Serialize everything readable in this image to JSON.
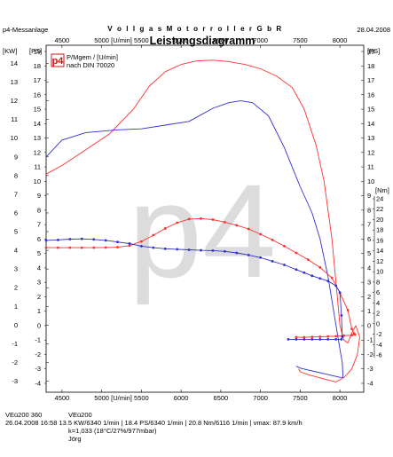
{
  "header": {
    "left": "p4-Messanlage",
    "center": "V o l l g a s   M o t o r r o l l e r   G b R",
    "date": "28.04.2008",
    "title": "Leistungsdiagramm"
  },
  "legend": {
    "logo": "p4",
    "line1": "P/Mgem / [U/min]",
    "line2": "nach DIN 70020"
  },
  "watermark": "p4",
  "colors": {
    "power": "#ff3030",
    "torque": "#3030d0",
    "axis": "#000000",
    "logo": "#d01010",
    "watermark": "#dcdcdc"
  },
  "footer": {
    "line1_left": "VEü200 360",
    "line1_right": "VEü200",
    "line2": "26.04.2008  16:58 13.5 KW/6340 1/min  |  18.4 PS/6340 1/min  |  20.8 Nm/6116 1/min  |  vmax: 87.9 km/h",
    "line3": "k=1,033 (18°C/27%/977mbar)",
    "line4": "Jörg"
  },
  "chart_data": {
    "type": "line",
    "title": "Leistungsdiagramm",
    "xlabel": "[U/min]",
    "xlim": [
      4300,
      8300
    ],
    "x_ticks": [
      4500,
      5000,
      5500,
      6000,
      6500,
      7000,
      7500,
      8000
    ],
    "left_axes": [
      {
        "unit": "[KW]",
        "range": [
          -3,
          14
        ],
        "ticks": [
          -3,
          -2,
          -1,
          0,
          1,
          2,
          3,
          4,
          5,
          6,
          7,
          8,
          9,
          10,
          11,
          12,
          13,
          14
        ]
      },
      {
        "unit": "[PS]",
        "range": [
          -4,
          19
        ],
        "ticks": [
          -4,
          -3,
          -2,
          -1,
          0,
          1,
          2,
          3,
          4,
          5,
          6,
          7,
          8,
          9,
          10,
          11,
          12,
          13,
          14,
          15,
          16,
          17,
          18,
          19
        ]
      }
    ],
    "right_axes": [
      {
        "unit": "[PS]",
        "range": [
          -4,
          19
        ],
        "ticks": [
          -4,
          -3,
          -2,
          -1,
          0,
          1,
          2,
          3,
          4,
          5,
          6,
          7,
          8,
          9,
          10,
          11,
          12,
          13,
          14,
          15,
          16,
          17,
          18,
          19
        ]
      },
      {
        "unit": "[Nm]",
        "range": [
          -6,
          24
        ],
        "ticks": [
          -6,
          -4,
          -2,
          0,
          2,
          4,
          6,
          8,
          10,
          12,
          14,
          16,
          18,
          20,
          22,
          24
        ]
      }
    ],
    "series": [
      {
        "name": "P",
        "unit": "PS",
        "color": "#ff3030",
        "markers": false,
        "x": [
          4300,
          4500,
          4800,
          5100,
          5400,
          5600,
          5800,
          6000,
          6200,
          6400,
          6600,
          6800,
          7000,
          7200,
          7400,
          7550,
          7700,
          7800,
          7900,
          7950,
          8000,
          8050,
          8100,
          8150,
          8200,
          8250,
          8220,
          8150,
          8050,
          7950,
          7800,
          7600,
          7500,
          7480
        ],
        "y": [
          10.5,
          11.1,
          12.2,
          13.3,
          15.0,
          16.6,
          17.6,
          18.1,
          18.35,
          18.4,
          18.3,
          18.1,
          17.8,
          17.3,
          16.5,
          15.0,
          12.5,
          10.0,
          6.0,
          3.0,
          0.0,
          -1.0,
          -1.2,
          -0.5,
          0.0,
          -0.8,
          -2.0,
          -3.0,
          -3.6,
          -3.9,
          -3.7,
          -3.4,
          -3.2,
          -3.0
        ]
      },
      {
        "name": "P",
        "unit": "KW",
        "color": "#3030d0",
        "markers": false,
        "x": [
          4300,
          4500,
          4800,
          5200,
          5500,
          5800,
          6100,
          6400,
          6600,
          6750,
          6900,
          7100,
          7300,
          7500,
          7650,
          7750,
          7850,
          7950,
          8000,
          8030,
          8040,
          8000,
          7950,
          7900,
          7800,
          7700,
          7600,
          7500,
          7450
        ],
        "y": [
          9.0,
          9.9,
          10.3,
          10.45,
          10.5,
          10.7,
          10.9,
          11.6,
          11.9,
          12.0,
          11.9,
          11.2,
          9.5,
          7.4,
          6.0,
          4.6,
          2.6,
          0.0,
          -1.3,
          -2.0,
          -2.8,
          -2.8,
          -2.75,
          -2.7,
          -2.6,
          -2.5,
          -2.4,
          -2.3,
          -2.2
        ]
      },
      {
        "name": "M",
        "unit": "Nm",
        "color": "#ff3030",
        "markers": true,
        "x": [
          4300,
          4450,
          4600,
          4750,
          4900,
          5050,
          5200,
          5350,
          5500,
          5650,
          5800,
          5950,
          6100,
          6250,
          6400,
          6550,
          6700,
          6850,
          7000,
          7150,
          7300,
          7450,
          7600,
          7750,
          7900,
          8000,
          8100,
          8150,
          8180,
          8190,
          8150,
          8050,
          7950,
          7850,
          7750,
          7650,
          7550,
          7450
        ],
        "y": [
          14.6,
          14.6,
          14.6,
          14.6,
          14.6,
          14.65,
          14.7,
          15.0,
          15.8,
          17.0,
          18.3,
          19.4,
          20.1,
          20.2,
          20.0,
          19.5,
          18.9,
          18.2,
          17.2,
          16.1,
          14.9,
          13.6,
          12.3,
          10.8,
          8.8,
          5.9,
          2.6,
          -1.0,
          -1.9,
          -2.1,
          -2.2,
          -2.3,
          -2.4,
          -2.45,
          -2.5,
          -2.55,
          -2.6,
          -2.6
        ]
      },
      {
        "name": "M",
        "unit": "Nm",
        "color": "#3030d0",
        "markers": true,
        "x": [
          4300,
          4450,
          4600,
          4750,
          4900,
          5050,
          5200,
          5350,
          5500,
          5650,
          5800,
          5950,
          6100,
          6250,
          6400,
          6550,
          6700,
          6850,
          7000,
          7150,
          7300,
          7450,
          7550,
          7650,
          7750,
          7850,
          7950,
          8000,
          8020,
          8030,
          8020,
          7950,
          7850,
          7750,
          7650,
          7550,
          7450,
          7350
        ],
        "y": [
          16.0,
          16.1,
          16.25,
          16.3,
          16.2,
          16.0,
          15.7,
          15.4,
          14.9,
          14.6,
          14.4,
          14.3,
          14.2,
          14.1,
          14.05,
          13.9,
          13.6,
          13.2,
          12.7,
          12.0,
          11.3,
          10.4,
          9.8,
          9.2,
          8.7,
          8.2,
          7.3,
          6.0,
          1.6,
          -2.5,
          -3.0,
          -3.0,
          -3.0,
          -3.0,
          -3.0,
          -3.0,
          -3.0,
          -3.0
        ]
      }
    ]
  }
}
